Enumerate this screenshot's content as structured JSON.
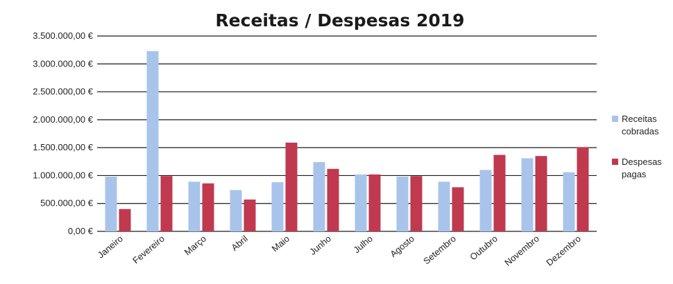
{
  "chart_data": {
    "type": "bar",
    "title": "Receitas / Despesas 2019",
    "xlabel": "",
    "ylabel": "",
    "ylim": [
      0,
      3500000
    ],
    "yticks": [
      0,
      500000,
      1000000,
      1500000,
      2000000,
      2500000,
      3000000,
      3500000
    ],
    "ytick_labels": [
      "0,00 €",
      "500.000,00 €",
      "1.000.000,00 €",
      "1.500.000,00 €",
      "2.000.000,00 €",
      "2.500.000,00 €",
      "3.000.000,00 €",
      "3.500.000,00 €"
    ],
    "grid": true,
    "legend_position": "right",
    "categories": [
      "Janeiro",
      "Fevereiro",
      "Março",
      "Abril",
      "Maio",
      "Junho",
      "Julho",
      "Agosto",
      "Setembro",
      "Outubro",
      "Novembro",
      "Dezembro"
    ],
    "series": [
      {
        "name": "Receitas cobradas",
        "legend_lines": [
          "Receitas",
          "cobradas"
        ],
        "color": "#a9c4eb",
        "values": [
          980000,
          3230000,
          890000,
          740000,
          880000,
          1240000,
          1020000,
          980000,
          890000,
          1100000,
          1310000,
          1060000
        ]
      },
      {
        "name": "Despesas pagas",
        "legend_lines": [
          "Despesas",
          "pagas"
        ],
        "color": "#c0394e",
        "values": [
          400000,
          990000,
          860000,
          570000,
          1590000,
          1120000,
          1020000,
          990000,
          790000,
          1370000,
          1350000,
          1510000
        ]
      }
    ]
  }
}
